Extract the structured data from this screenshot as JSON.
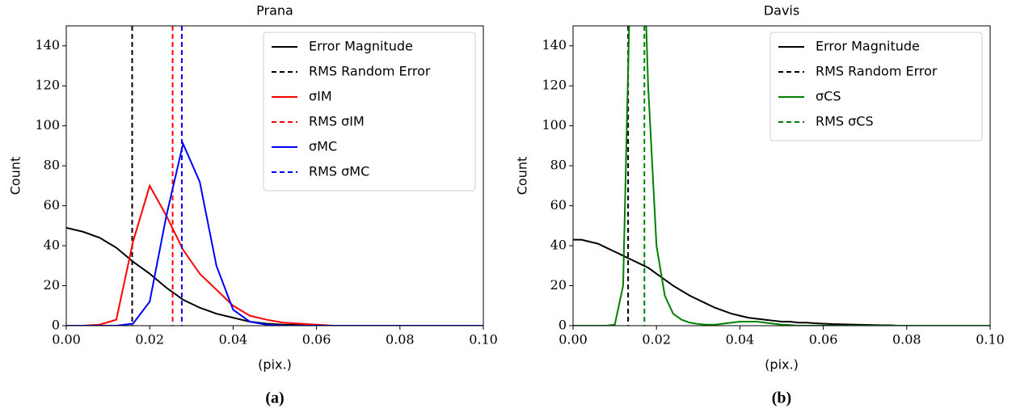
{
  "chart_data": [
    {
      "type": "line",
      "title": "Prana",
      "xlabel": "(pix.)",
      "ylabel": "Count",
      "caption": "(a)",
      "x": [
        0,
        0.004,
        0.008,
        0.012,
        0.016,
        0.02,
        0.024,
        0.028,
        0.032,
        0.036,
        0.04,
        0.044,
        0.048,
        0.052,
        0.056,
        0.06,
        0.064,
        0.068,
        0.072,
        0.076,
        0.08,
        0.084,
        0.088,
        0.092,
        0.096,
        0.1
      ],
      "series": [
        {
          "name": "Error Magnitude",
          "color": "#000000",
          "values": [
            49,
            47,
            44,
            39,
            32,
            26,
            19,
            13,
            9,
            6,
            4,
            2,
            1,
            0.5,
            0.3,
            0,
            0,
            0,
            0,
            0,
            0,
            0,
            0,
            0,
            0,
            0
          ]
        },
        {
          "name": "RMS Random Error",
          "color": "#000000",
          "dashed": true,
          "at": 0.0158
        },
        {
          "name": "σIM",
          "color": "#ff0000",
          "values": [
            0,
            0,
            0.5,
            3,
            42,
            70,
            55,
            38,
            26,
            18,
            10,
            5,
            3,
            1.5,
            1,
            0.5,
            0,
            0,
            0,
            0,
            0,
            0,
            0,
            0,
            0,
            0
          ]
        },
        {
          "name": "RMS σIM",
          "color": "#ff0000",
          "dashed": true,
          "at": 0.0255
        },
        {
          "name": "σMC",
          "color": "#0000ff",
          "values": [
            0,
            0,
            0,
            0,
            1,
            12,
            55,
            91,
            72,
            30,
            8,
            2,
            0.5,
            0,
            0,
            0,
            0,
            0,
            0,
            0,
            0,
            0,
            0,
            0,
            0,
            0
          ]
        },
        {
          "name": "RMS σMC",
          "color": "#0000ff",
          "dashed": true,
          "at": 0.0277
        }
      ],
      "xlim": [
        0,
        0.1
      ],
      "ylim": [
        0,
        150
      ],
      "xticks": [
        {
          "value": 0,
          "label": "0.00"
        },
        {
          "value": 0.02,
          "label": "0.02"
        },
        {
          "value": 0.04,
          "label": "0.04"
        },
        {
          "value": 0.06,
          "label": "0.06"
        },
        {
          "value": 0.08,
          "label": "0.08"
        },
        {
          "value": 0.1,
          "label": "0.10"
        }
      ],
      "yticks": [
        0,
        20,
        40,
        60,
        80,
        100,
        120,
        140
      ],
      "legend": "upper right"
    },
    {
      "type": "line",
      "title": "Davis",
      "xlabel": "(pix.)",
      "ylabel": "Count",
      "caption": "(b)",
      "x": [
        0,
        0.002,
        0.004,
        0.006,
        0.008,
        0.01,
        0.012,
        0.014,
        0.016,
        0.018,
        0.02,
        0.022,
        0.024,
        0.026,
        0.028,
        0.03,
        0.032,
        0.034,
        0.036,
        0.038,
        0.04,
        0.042,
        0.044,
        0.046,
        0.048,
        0.05,
        0.052,
        0.054,
        0.056,
        0.058,
        0.06,
        0.062,
        0.064,
        0.066,
        0.068,
        0.07,
        0.072,
        0.074,
        0.076,
        0.078,
        0.08,
        0.082,
        0.084,
        0.086,
        0.088,
        0.09,
        0.092,
        0.094,
        0.096,
        0.098,
        0.1
      ],
      "series": [
        {
          "name": "Error Magnitude",
          "color": "#000000",
          "values": [
            43,
            43,
            42,
            41,
            39,
            37,
            35,
            33,
            31,
            29,
            26,
            23,
            20,
            17.5,
            15,
            13,
            11,
            9,
            7.5,
            6,
            5,
            4,
            3.5,
            3,
            2.5,
            2,
            2,
            1.5,
            1.5,
            1.2,
            1,
            0.8,
            0.7,
            0.6,
            0.5,
            0.4,
            0.3,
            0.2,
            0.2,
            0,
            0,
            0,
            0,
            0,
            0,
            0,
            0,
            0,
            0,
            0,
            0
          ]
        },
        {
          "name": "RMS Random Error",
          "color": "#000000",
          "dashed": true,
          "at": 0.0132
        },
        {
          "name": "σCS",
          "color": "#008000",
          "values": [
            0,
            0,
            0,
            0,
            0,
            0.5,
            20,
            200,
            250,
            120,
            40,
            15,
            6,
            3,
            1.5,
            0.8,
            0.5,
            0.5,
            1,
            1.5,
            2,
            2,
            2,
            1.5,
            1,
            0.5,
            0.3,
            0,
            0,
            0,
            0,
            0,
            0,
            0,
            0,
            0,
            0,
            0,
            0,
            0,
            0,
            0,
            0,
            0,
            0,
            0,
            0,
            0,
            0,
            0,
            0
          ]
        },
        {
          "name": "RMS σCS",
          "color": "#008000",
          "dashed": true,
          "at": 0.0171
        }
      ],
      "xlim": [
        0,
        0.1
      ],
      "ylim": [
        0,
        150
      ],
      "xticks": [
        {
          "value": 0,
          "label": "0.00"
        },
        {
          "value": 0.02,
          "label": "0.02"
        },
        {
          "value": 0.04,
          "label": "0.04"
        },
        {
          "value": 0.06,
          "label": "0.06"
        },
        {
          "value": 0.08,
          "label": "0.08"
        },
        {
          "value": 0.1,
          "label": "0.10"
        }
      ],
      "yticks": [
        0,
        20,
        40,
        60,
        80,
        100,
        120,
        140
      ],
      "legend": "upper right"
    }
  ]
}
